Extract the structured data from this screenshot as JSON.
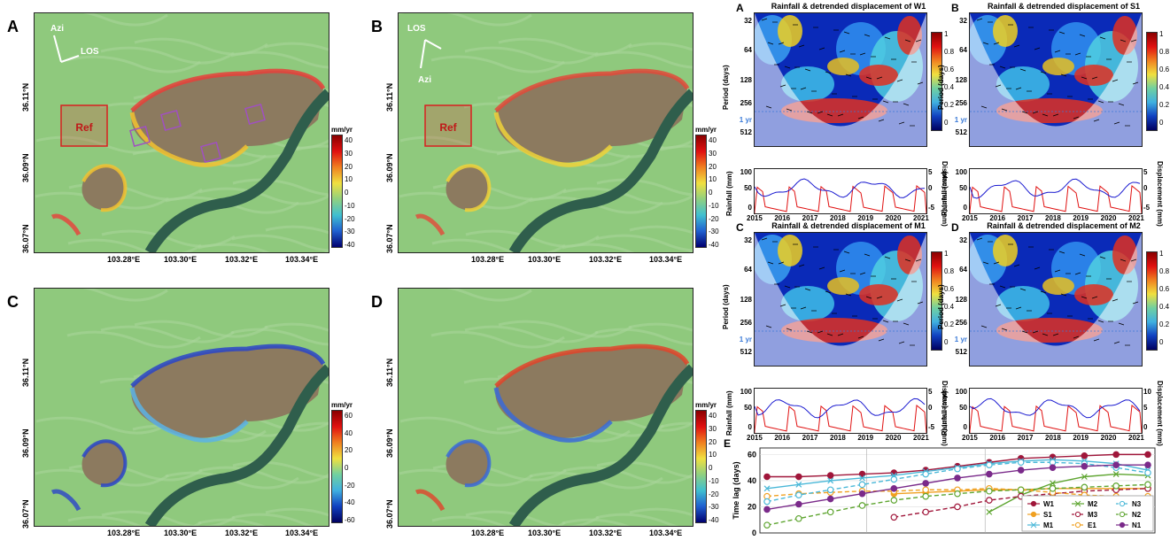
{
  "maps": {
    "panel_labels": [
      "A",
      "B",
      "C",
      "D"
    ],
    "lon_ticks": [
      "103.28°E",
      "103.30°E",
      "103.32°E",
      "103.34°E"
    ],
    "lat_ticks": [
      "36.11°N",
      "36.09°N",
      "36.07°N"
    ],
    "ref_label": "Ref",
    "arrow_labels": {
      "azi": "Azi",
      "los": "LOS"
    },
    "colorbar_unit": "mm/yr",
    "colorbar_ticks_40": [
      "40",
      "30",
      "20",
      "10",
      "0",
      "-10",
      "-20",
      "-30",
      "-40"
    ],
    "colorbar_ticks_60": [
      "60",
      "40",
      "20",
      "0",
      "-20",
      "-40",
      "-60"
    ]
  },
  "wavelets": {
    "panels": [
      {
        "label": "A",
        "title": "Rainfall & detrended displacement of W1"
      },
      {
        "label": "B",
        "title": "Rainfall & detrended displacement of S1"
      },
      {
        "label": "C",
        "title": "Rainfall & detrended displacement of M1"
      },
      {
        "label": "D",
        "title": "Rainfall & detrended displacement of M2"
      }
    ],
    "period_ticks": [
      "32",
      "64",
      "128",
      "256",
      "1 yr",
      "512"
    ],
    "period_label": "Period (days)",
    "cbar_ticks": [
      "1",
      "0.8",
      "0.6",
      "0.4",
      "0.2",
      "0"
    ],
    "year_ticks": [
      "2015",
      "2016",
      "2017",
      "2018",
      "2019",
      "2020",
      "2021"
    ],
    "rain_label": "Rainfall (mm)",
    "disp_label": "Displacement (mm)",
    "rain_ticks": [
      "100",
      "50",
      "0"
    ],
    "disp_ticks_5": [
      "5",
      "0",
      "-5"
    ],
    "disp_ticks_10": [
      "10",
      "5",
      "0"
    ]
  },
  "chart_data": {
    "label": "E",
    "type": "line",
    "ylabel": "Time lag (days)",
    "ylim": [
      0,
      65
    ],
    "yticks": [
      "60",
      "40",
      "20",
      "0"
    ],
    "x": [
      0,
      1,
      2,
      3,
      4,
      5,
      6,
      7,
      8,
      9,
      10,
      11,
      12
    ],
    "grid": true,
    "series": [
      {
        "name": "W1",
        "color": "#a0163a",
        "dashed": false,
        "marker": "circle-filled",
        "values": [
          43,
          43,
          44,
          45,
          46,
          48,
          51,
          54,
          57,
          58,
          59,
          60,
          60
        ]
      },
      {
        "name": "S1",
        "color": "#f0a020",
        "dashed": false,
        "marker": "circle-filled",
        "values": [
          null,
          null,
          null,
          null,
          30,
          31,
          32,
          33,
          33,
          34,
          34,
          34,
          34
        ]
      },
      {
        "name": "M1",
        "color": "#4ab8d8",
        "dashed": false,
        "marker": "x",
        "values": [
          34,
          37,
          40,
          42,
          44,
          47,
          50,
          53,
          55,
          56,
          55,
          53,
          48
        ]
      },
      {
        "name": "M2",
        "color": "#5ea530",
        "dashed": false,
        "marker": "x",
        "values": [
          null,
          null,
          null,
          null,
          null,
          null,
          null,
          16,
          29,
          38,
          43,
          45,
          44
        ]
      },
      {
        "name": "M3",
        "color": "#a0163a",
        "dashed": true,
        "marker": "circle-open",
        "values": [
          null,
          null,
          null,
          null,
          12,
          16,
          20,
          25,
          28,
          30,
          32,
          33,
          34
        ]
      },
      {
        "name": "E1",
        "color": "#f0a020",
        "dashed": true,
        "marker": "circle-open",
        "values": [
          28,
          30,
          31,
          32,
          32,
          33,
          33,
          34,
          33,
          31,
          29,
          28,
          28
        ]
      },
      {
        "name": "N3",
        "color": "#4ab8d8",
        "dashed": true,
        "marker": "circle-open",
        "values": [
          24,
          29,
          33,
          37,
          41,
          45,
          49,
          52,
          54,
          54,
          53,
          50,
          46
        ]
      },
      {
        "name": "N2",
        "color": "#5ea530",
        "dashed": true,
        "marker": "circle-open",
        "values": [
          6,
          11,
          16,
          21,
          25,
          28,
          30,
          32,
          33,
          34,
          35,
          36,
          37
        ]
      },
      {
        "name": "N1",
        "color": "#7a2a8a",
        "dashed": false,
        "marker": "circle-filled",
        "values": [
          18,
          22,
          26,
          30,
          34,
          38,
          42,
          45,
          48,
          50,
          51,
          52,
          52
        ]
      }
    ]
  }
}
